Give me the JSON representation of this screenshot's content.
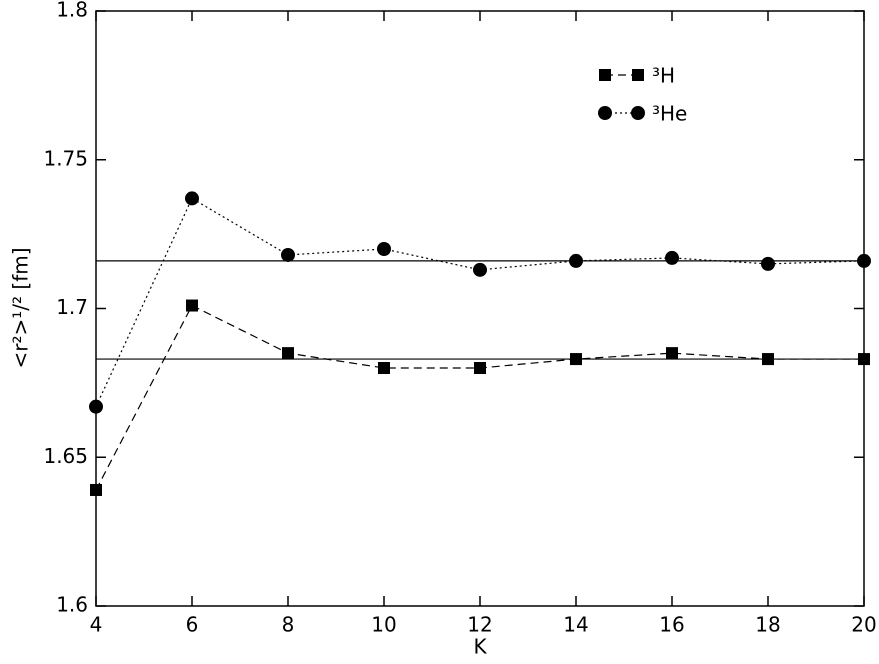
{
  "chart_data": {
    "type": "line",
    "x_label": "K",
    "y_label": "<r²>¹/² [fm]",
    "x": [
      4,
      6,
      8,
      10,
      12,
      14,
      16,
      18,
      20
    ],
    "series": [
      {
        "name": "³H",
        "color": "#000000",
        "marker": "square",
        "dash": "dashed",
        "values": [
          1.639,
          1.701,
          1.685,
          1.68,
          1.68,
          1.683,
          1.685,
          1.683,
          1.683
        ]
      },
      {
        "name": "³He",
        "color": "#000000",
        "marker": "circle",
        "dash": "dotted",
        "values": [
          1.667,
          1.737,
          1.718,
          1.72,
          1.713,
          1.716,
          1.717,
          1.715,
          1.716
        ]
      }
    ],
    "hlines": [
      1.683,
      1.716
    ],
    "xlim": [
      4,
      20
    ],
    "xticks": [
      4,
      6,
      8,
      10,
      12,
      14,
      16,
      18,
      20
    ],
    "ylim": [
      1.6,
      1.8
    ],
    "yticks": [
      1.6,
      1.65,
      1.7,
      1.75,
      1.8
    ],
    "legend": "upper right"
  }
}
